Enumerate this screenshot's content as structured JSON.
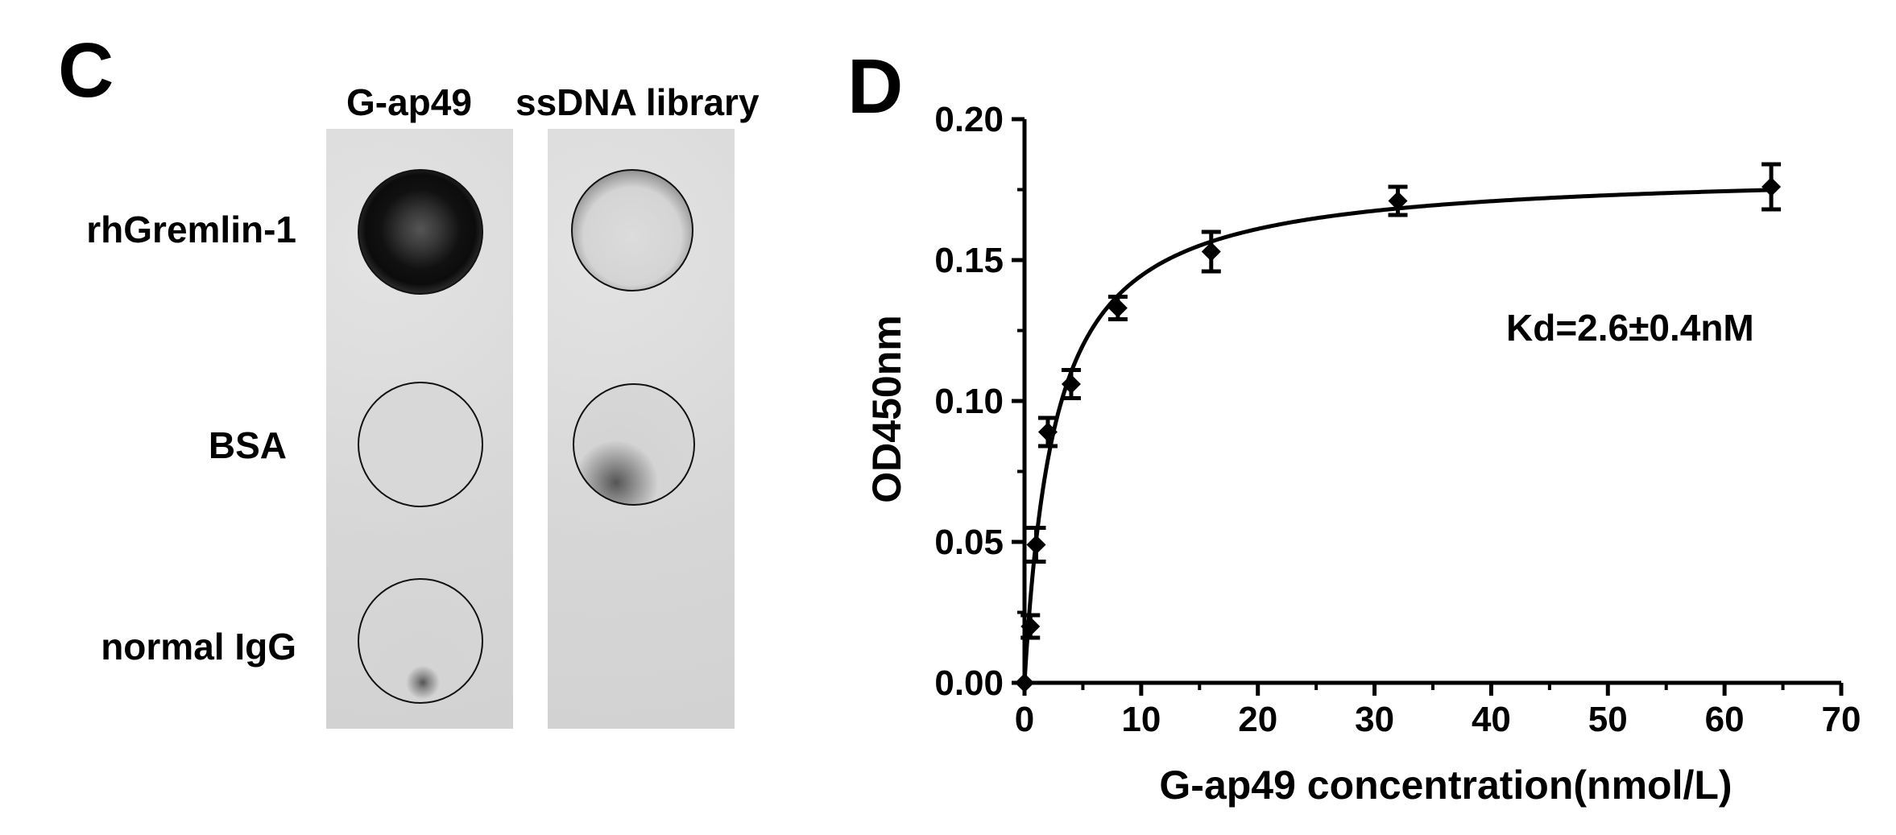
{
  "panel_c": {
    "letter": "C",
    "columns": [
      "G-ap49",
      "ssDNA library"
    ],
    "rows": [
      "rhGremlin-1",
      "BSA",
      "normal IgG"
    ]
  },
  "panel_d": {
    "letter": "D",
    "annotation": "Kd=2.6±0.4nM"
  },
  "chart_data": {
    "type": "scatter",
    "xlabel": "G-ap49 concentration(nmol/L)",
    "ylabel": "OD450nm",
    "xlim": [
      0,
      70
    ],
    "ylim": [
      0,
      0.2
    ],
    "xticks": [
      "0",
      "10",
      "20",
      "30",
      "40",
      "50",
      "60",
      "70"
    ],
    "yticks": [
      "0.00",
      "0.05",
      "0.10",
      "0.15",
      "0.20"
    ],
    "series": [
      {
        "x": [
          0,
          0.5,
          1,
          2,
          4,
          8,
          16,
          32,
          64
        ],
        "y": [
          0.0,
          0.02,
          0.049,
          0.089,
          0.106,
          0.133,
          0.153,
          0.171,
          0.176
        ],
        "err": [
          0,
          0.004,
          0.006,
          0.005,
          0.005,
          0.004,
          0.007,
          0.005,
          0.008
        ]
      }
    ],
    "fit": {
      "model": "one-site binding",
      "bmax": 0.182,
      "kd": 2.6
    }
  }
}
